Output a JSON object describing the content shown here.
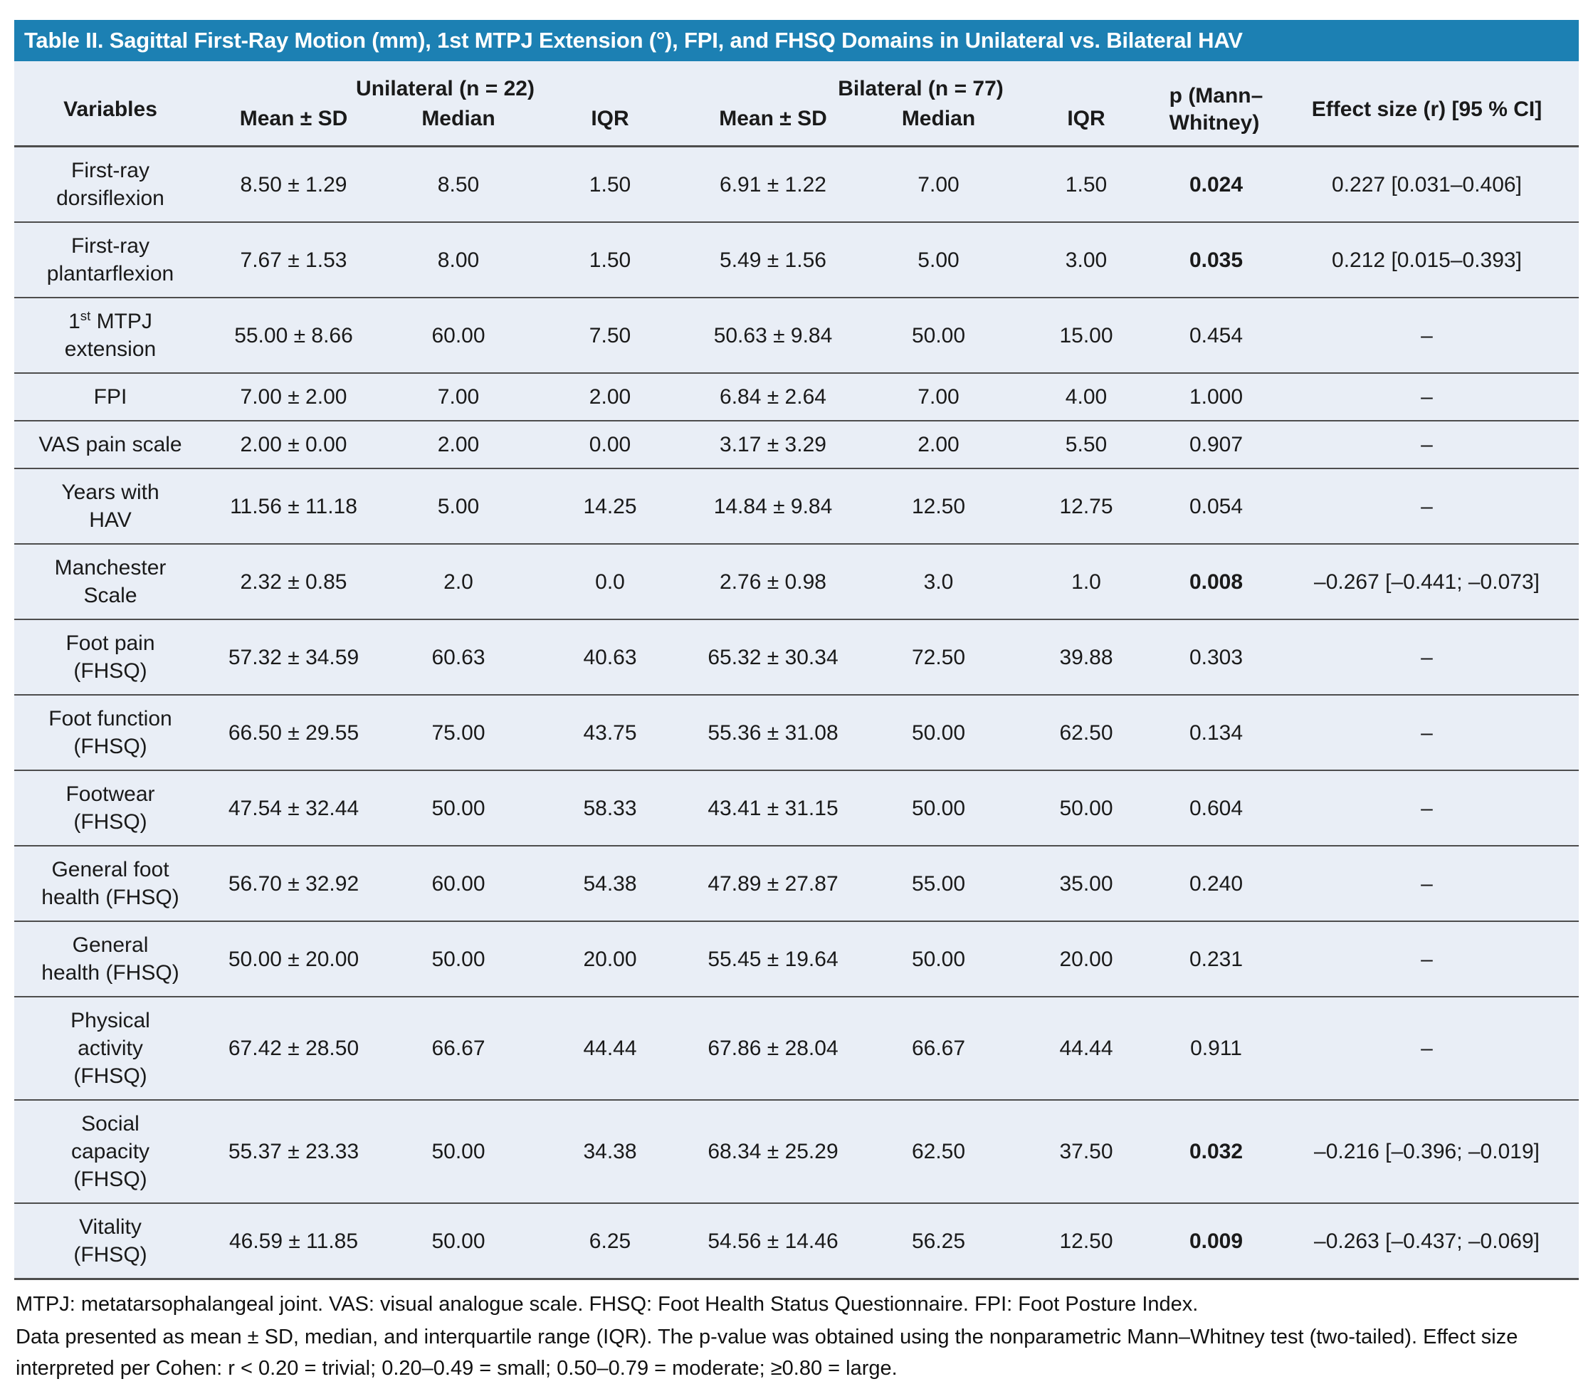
{
  "title": "Table II. Sagittal First-Ray Motion (mm), 1st MTPJ Extension (°), FPI, and FHSQ Domains in Unilateral vs. Bilateral HAV",
  "colors": {
    "title_bar_bg": "#1c80b3",
    "title_text": "#ffffff",
    "table_bg": "#e9eef6",
    "rule_color": "#4d4d4d"
  },
  "header": {
    "variables": "Variables",
    "group_unilateral": "Unilateral (n = 22)",
    "group_bilateral": "Bilateral (n = 77)",
    "p_col": "p (Mann–\nWhitney)",
    "effect_col": "Effect size (r) [95 % CI]",
    "sub": [
      "Mean ± SD",
      "Median",
      "IQR",
      "Mean ± SD",
      "Median",
      "IQR"
    ]
  },
  "rows": [
    {
      "label": "First-ray\ndorsiflexion",
      "uni_mean": "8.50 ± 1.29",
      "uni_median": "8.50",
      "uni_iqr": "1.50",
      "bil_mean": "6.91 ± 1.22",
      "bil_median": "7.00",
      "bil_iqr": "1.50",
      "p": "0.024",
      "p_bold": true,
      "effect": "0.227 [0.031–0.406]"
    },
    {
      "label": "First-ray\nplantarflexion",
      "uni_mean": "7.67 ± 1.53",
      "uni_median": "8.00",
      "uni_iqr": "1.50",
      "bil_mean": "5.49 ± 1.56",
      "bil_median": "5.00",
      "bil_iqr": "3.00",
      "p": "0.035",
      "p_bold": true,
      "effect": "0.212 [0.015–0.393]"
    },
    {
      "label_parts": [
        "1",
        "st",
        " MTPJ\nextension"
      ],
      "uni_mean": "55.00 ± 8.66",
      "uni_median": "60.00",
      "uni_iqr": "7.50",
      "bil_mean": "50.63 ± 9.84",
      "bil_median": "50.00",
      "bil_iqr": "15.00",
      "p": "0.454",
      "p_bold": false,
      "effect": "–"
    },
    {
      "label": "FPI",
      "uni_mean": "7.00 ± 2.00",
      "uni_median": "7.00",
      "uni_iqr": "2.00",
      "bil_mean": "6.84 ± 2.64",
      "bil_median": "7.00",
      "bil_iqr": "4.00",
      "p": "1.000",
      "p_bold": false,
      "effect": "–"
    },
    {
      "label": "VAS pain scale",
      "uni_mean": "2.00 ± 0.00",
      "uni_median": "2.00",
      "uni_iqr": "0.00",
      "bil_mean": "3.17 ± 3.29",
      "bil_median": "2.00",
      "bil_iqr": "5.50",
      "p": "0.907",
      "p_bold": false,
      "effect": "–"
    },
    {
      "label": "Years with\nHAV",
      "uni_mean": "11.56 ± 11.18",
      "uni_median": "5.00",
      "uni_iqr": "14.25",
      "bil_mean": "14.84 ± 9.84",
      "bil_median": "12.50",
      "bil_iqr": "12.75",
      "p": "0.054",
      "p_bold": false,
      "effect": "–"
    },
    {
      "label": "Manchester\nScale",
      "uni_mean": "2.32 ± 0.85",
      "uni_median": "2.0",
      "uni_iqr": "0.0",
      "bil_mean": "2.76 ± 0.98",
      "bil_median": "3.0",
      "bil_iqr": "1.0",
      "p": "0.008",
      "p_bold": true,
      "effect": "–0.267 [–0.441; –0.073]"
    },
    {
      "label": "Foot pain\n(FHSQ)",
      "uni_mean": "57.32 ± 34.59",
      "uni_median": "60.63",
      "uni_iqr": "40.63",
      "bil_mean": "65.32 ± 30.34",
      "bil_median": "72.50",
      "bil_iqr": "39.88",
      "p": "0.303",
      "p_bold": false,
      "effect": "–"
    },
    {
      "label": "Foot function\n(FHSQ)",
      "uni_mean": "66.50 ± 29.55",
      "uni_median": "75.00",
      "uni_iqr": "43.75",
      "bil_mean": "55.36 ± 31.08",
      "bil_median": "50.00",
      "bil_iqr": "62.50",
      "p": "0.134",
      "p_bold": false,
      "effect": "–"
    },
    {
      "label": "Footwear\n(FHSQ)",
      "uni_mean": "47.54 ± 32.44",
      "uni_median": "50.00",
      "uni_iqr": "58.33",
      "bil_mean": "43.41 ± 31.15",
      "bil_median": "50.00",
      "bil_iqr": "50.00",
      "p": "0.604",
      "p_bold": false,
      "effect": "–"
    },
    {
      "label": "General foot\nhealth (FHSQ)",
      "uni_mean": "56.70 ± 32.92",
      "uni_median": "60.00",
      "uni_iqr": "54.38",
      "bil_mean": "47.89 ± 27.87",
      "bil_median": "55.00",
      "bil_iqr": "35.00",
      "p": "0.240",
      "p_bold": false,
      "effect": "–"
    },
    {
      "label": "General\nhealth (FHSQ)",
      "uni_mean": "50.00 ± 20.00",
      "uni_median": "50.00",
      "uni_iqr": "20.00",
      "bil_mean": "55.45 ± 19.64",
      "bil_median": "50.00",
      "bil_iqr": "20.00",
      "p": "0.231",
      "p_bold": false,
      "effect": "–"
    },
    {
      "label": "Physical\nactivity\n(FHSQ)",
      "uni_mean": "67.42 ± 28.50",
      "uni_median": "66.67",
      "uni_iqr": "44.44",
      "bil_mean": "67.86 ± 28.04",
      "bil_median": "66.67",
      "bil_iqr": "44.44",
      "p": "0.911",
      "p_bold": false,
      "effect": "–"
    },
    {
      "label": "Social\ncapacity\n(FHSQ)",
      "uni_mean": "55.37 ± 23.33",
      "uni_median": "50.00",
      "uni_iqr": "34.38",
      "bil_mean": "68.34 ± 25.29",
      "bil_median": "62.50",
      "bil_iqr": "37.50",
      "p": "0.032",
      "p_bold": true,
      "effect": "–0.216 [–0.396; –0.019]"
    },
    {
      "label": "Vitality\n(FHSQ)",
      "uni_mean": "46.59 ± 11.85",
      "uni_median": "50.00",
      "uni_iqr": "6.25",
      "bil_mean": "54.56 ± 14.46",
      "bil_median": "56.25",
      "bil_iqr": "12.50",
      "p": "0.009",
      "p_bold": true,
      "effect": "–0.263 [–0.437; –0.069]"
    }
  ],
  "footnotes": [
    "MTPJ: metatarsophalangeal joint. VAS: visual analogue scale. FHSQ: Foot Health Status Questionnaire. FPI: Foot Posture Index.",
    "Data presented as mean ± SD, median, and interquartile range (IQR). The p-value was obtained using the nonparametric Mann–Whitney test (two-tailed). Effect size interpreted per Cohen: r < 0.20 = trivial; 0.20–0.49 = small; 0.50–0.79 = moderate; ≥0.80 = large."
  ]
}
